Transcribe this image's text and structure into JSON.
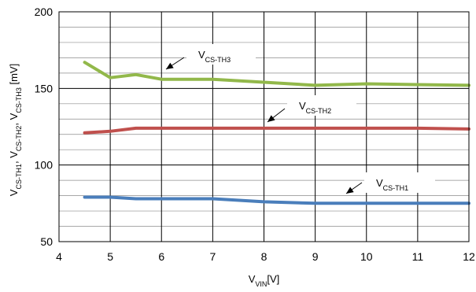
{
  "chart_data": {
    "type": "line",
    "xlim": [
      4,
      12
    ],
    "ylim": [
      50,
      200
    ],
    "xticks": [
      4,
      5,
      6,
      7,
      8,
      9,
      10,
      11,
      12
    ],
    "yticks": [
      50,
      100,
      150,
      200
    ],
    "xlabel": {
      "base": "V",
      "sub": "VIN",
      "rest": "[V]"
    },
    "ylabel": [
      {
        "base": "V",
        "sub": "CS-TH1",
        "rest": ", "
      },
      {
        "base": "V",
        "sub": "CS-TH2",
        "rest": ", "
      },
      {
        "base": "V",
        "sub": "CS-TH3",
        "rest": " [mV]"
      }
    ],
    "grid": {
      "x": true,
      "y": true,
      "y_minor_step": 10
    },
    "series": [
      {
        "name": "V_CS-TH3",
        "label": {
          "base": "V",
          "sub": "CS-TH3"
        },
        "color": "#92b84a",
        "x": [
          4.5,
          5,
          5.5,
          6,
          7,
          8,
          9,
          10,
          11,
          12
        ],
        "y": [
          167,
          157,
          159,
          156,
          156,
          154,
          152,
          153,
          152.5,
          152
        ]
      },
      {
        "name": "V_CS-TH2",
        "label": {
          "base": "V",
          "sub": "CS-TH2"
        },
        "color": "#c0504d",
        "x": [
          4.5,
          5,
          5.5,
          6,
          7,
          8,
          9,
          10,
          11,
          12
        ],
        "y": [
          121,
          122,
          124,
          124,
          124,
          124,
          124,
          124,
          124,
          123.5
        ]
      },
      {
        "name": "V_CS-TH1",
        "label": {
          "base": "V",
          "sub": "CS-TH1"
        },
        "color": "#4a7ebb",
        "x": [
          4.5,
          5,
          5.5,
          6,
          7,
          8,
          9,
          10,
          11,
          12
        ],
        "y": [
          79,
          79,
          78,
          78,
          78,
          76,
          75,
          75,
          75,
          75
        ]
      }
    ]
  }
}
